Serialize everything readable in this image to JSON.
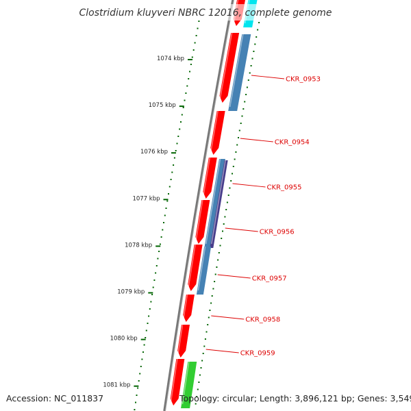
{
  "title": "Clostridium kluyveri NBRC 12016, complete genome",
  "accession": "Accession: NC_011837",
  "topology": "Topology: circular; Length: 3,896,121 bp; Genes: 3,549",
  "colors": {
    "backbone": "#808080",
    "forward_gene": "#ff0000",
    "reverse_gene": "#4682b4",
    "cyan_gene": "#00e5ee",
    "purple_gene": "#483d8b",
    "green_gene": "#32cd32",
    "gc_dots": "#006400",
    "label": "#dd0000"
  },
  "ruler": {
    "ticks": [
      "1074 kbp",
      "1075 kbp",
      "1076 kbp",
      "1077 kbp",
      "1078 kbp",
      "1079 kbp",
      "1080 kbp",
      "1081 kbp"
    ]
  },
  "gene_labels": [
    "CKR_0953",
    "CKR_0954",
    "CKR_0955",
    "CKR_0956",
    "CKR_0957",
    "CKR_0958",
    "CKR_0959"
  ]
}
